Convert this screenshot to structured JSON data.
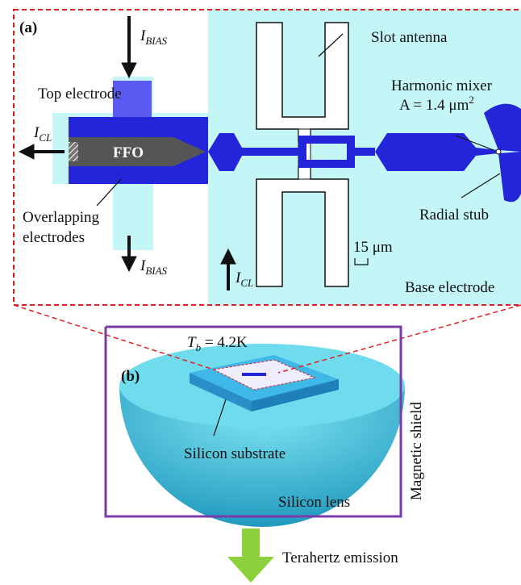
{
  "panel_a": {
    "label": "(a)",
    "i_bias_top": {
      "symbol": "I",
      "subscript": "BIAS"
    },
    "i_bias_bottom": {
      "symbol": "I",
      "subscript": "BIAS"
    },
    "i_cl_left": {
      "symbol": "I",
      "subscript": "CL"
    },
    "i_cl_bottom": {
      "symbol": "I",
      "subscript": "CL"
    },
    "top_electrode": "Top electrode",
    "ffo": "FFO",
    "overlapping_electrodes": [
      "Overlapping",
      "electrodes"
    ],
    "slot_antenna": "Slot antenna",
    "harmonic_mixer": "Harmonic mixer",
    "area": {
      "text": "A = 1.4 μm",
      "superscript": "2"
    },
    "radial_stub": "Radial stub",
    "scale_bar": "15 μm",
    "base_electrode": "Base electrode"
  },
  "panel_b": {
    "label": "(b)",
    "temperature": {
      "symbol": "T",
      "subscript": "b",
      "text": " = 4.2K"
    },
    "silicon_substrate": "Silicon substrate",
    "silicon_lens": "Silicon lens",
    "magnetic_shield": "Magnetic shield",
    "terahertz_emission": "Terahertz emission"
  }
}
